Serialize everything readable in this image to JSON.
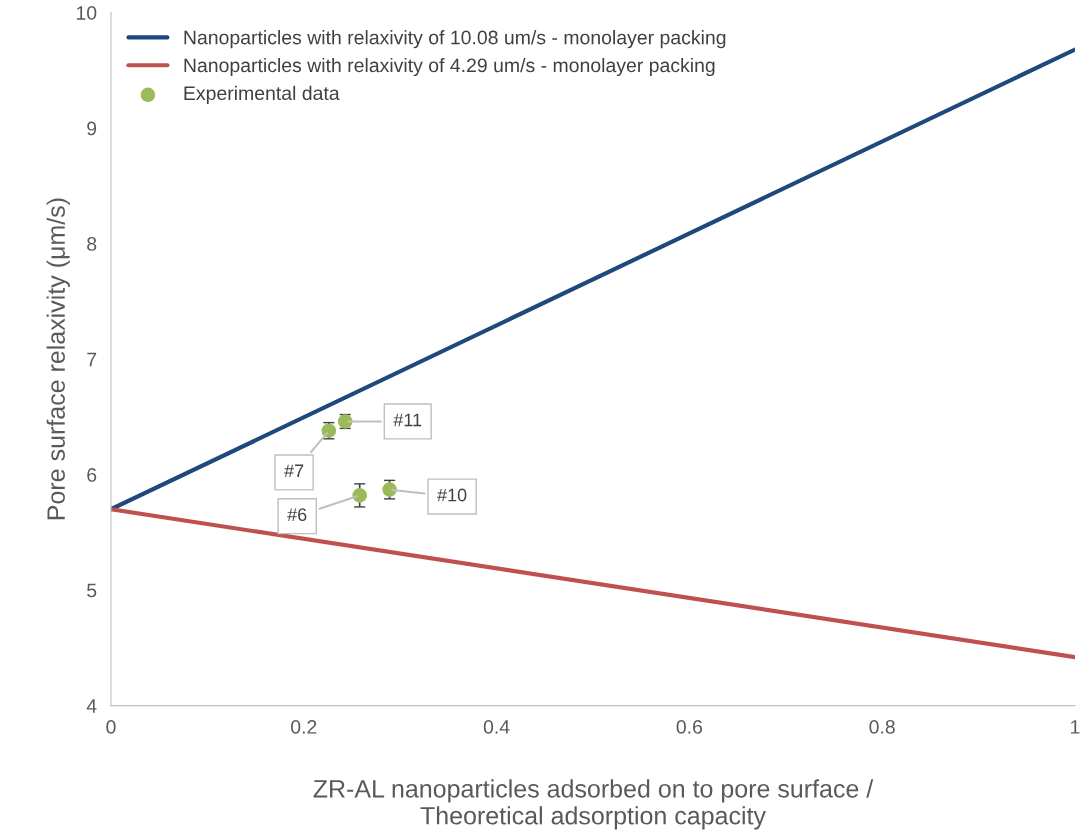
{
  "chart_data": {
    "type": "line",
    "xlabel": "ZR-AL nanoparticles adsorbed on to pore surface /\nTheoretical adsorption capacity",
    "ylabel": "Pore surface relaxivity (μm/s)",
    "xlim": [
      0,
      1
    ],
    "xticks": [
      0,
      0.2,
      0.4,
      0.6,
      0.8,
      1
    ],
    "ylim": [
      4,
      10
    ],
    "yticks": [
      4,
      5,
      6,
      7,
      8,
      9,
      10
    ],
    "grid": false,
    "legend": "top left",
    "series": [
      {
        "name": "Nanoparticles with relaxivity of 10.08 um/s - monolayer packing",
        "color": "#1f497d",
        "x": [
          0,
          1
        ],
        "values": [
          5.7,
          9.68
        ]
      },
      {
        "name": "Nanoparticles with relaxivity of 4.29 um/s - monolayer packing",
        "color": "#c0504d",
        "x": [
          0,
          1
        ],
        "values": [
          5.7,
          4.42
        ]
      },
      {
        "name": "Experimental data",
        "type": "scatter",
        "color": "#9bbb59",
        "marker": "circle",
        "x": [
          0.226,
          0.243,
          0.258,
          0.289
        ],
        "values": [
          6.38,
          6.46,
          5.82,
          5.87
        ],
        "errors": [
          0.07,
          0.06,
          0.1,
          0.08
        ]
      }
    ],
    "annotations": [
      {
        "text": "#7",
        "x": 0.226,
        "y": 6.38
      },
      {
        "text": "#11",
        "x": 0.243,
        "y": 6.46
      },
      {
        "text": "#6",
        "x": 0.258,
        "y": 5.82
      },
      {
        "text": "#10",
        "x": 0.289,
        "y": 5.87
      }
    ]
  }
}
